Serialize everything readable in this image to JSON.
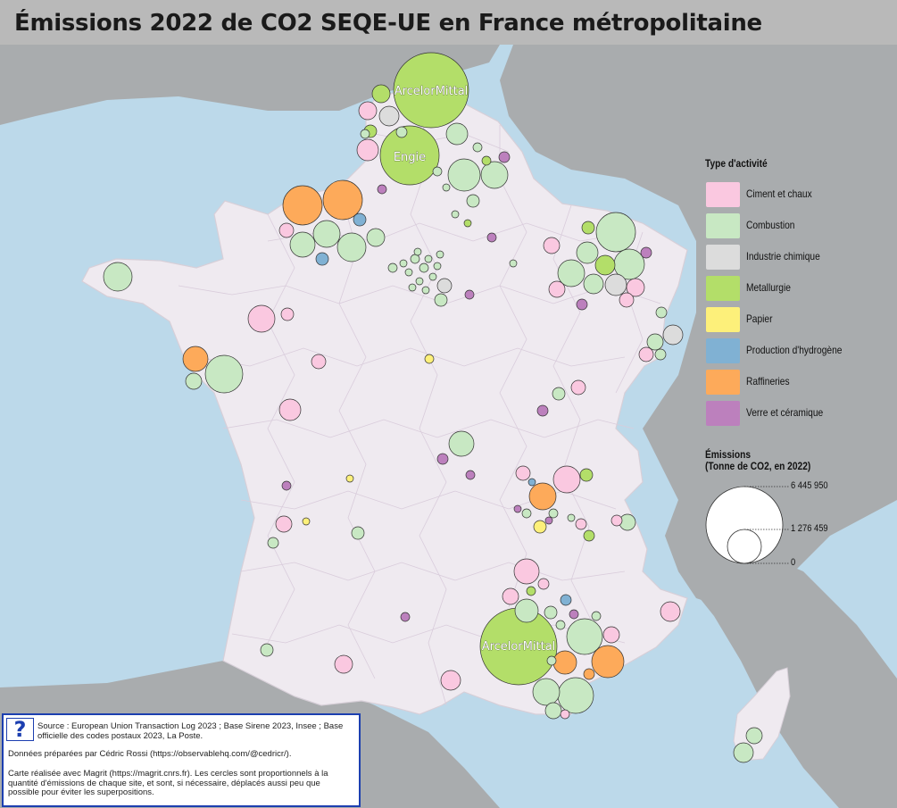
{
  "title": "Émissions 2022 de CO2 SEQE-UE en France métropolitaine",
  "legend": {
    "title": "Type d'activité",
    "items": [
      {
        "label": "Ciment et chaux",
        "color": "#fac8e0"
      },
      {
        "label": "Combustion",
        "color": "#c8e8c3"
      },
      {
        "label": "Industrie chimique",
        "color": "#dcdcdc"
      },
      {
        "label": "Metallurgie",
        "color": "#b3de69"
      },
      {
        "label": "Papier",
        "color": "#fdf07a"
      },
      {
        "label": "Production d'hydrogène",
        "color": "#80b1d3"
      },
      {
        "label": "Raffineries",
        "color": "#fdaa5a"
      },
      {
        "label": "Verre et céramique",
        "color": "#bc80bd"
      }
    ]
  },
  "size_legend": {
    "title_line1": "Émissions",
    "title_line2": "(Tonne de CO2, en 2022)",
    "values": [
      "6 445 950",
      "1 276 459",
      "0"
    ]
  },
  "map_labels": [
    "ArcelorMittal",
    "Engie",
    "ArcelorMittal"
  ],
  "source": {
    "line1": "Source : European Union Transaction Log 2023 ; Base Sirene 2023, Insee ; Base officielle des codes postaux 2023, La Poste.",
    "line2": "Données préparées par Cédric Rossi (https://observablehq.com/@cedricr/).",
    "line3": "Carte réalisée avec Magrit (https://magrit.cnrs.fr). Les cercles sont proportionnels à la quantité d'émissions de chaque site, et sont, si nécessaire, déplacés aussi peu que possible pour éviter les superpositions."
  }
}
